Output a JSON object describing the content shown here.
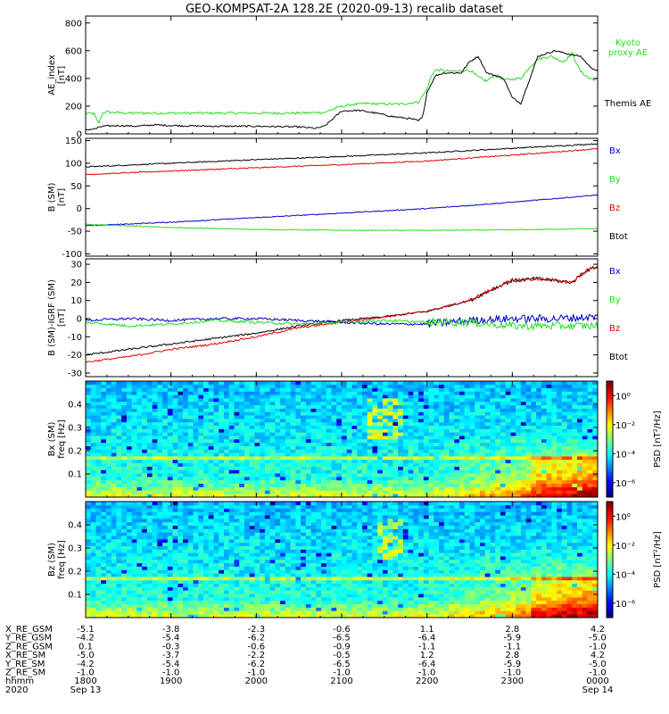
{
  "title": "GEO-KOMPSAT-2A 128.2E (2020-09-13) recalib dataset",
  "colors": {
    "black": "#000000",
    "red": "#e00000",
    "green": "#22dd22",
    "blue": "#0000cc"
  },
  "chart_data": [
    {
      "type": "line",
      "ylabel": [
        "AE_index",
        "[nT]"
      ],
      "xlim": [
        18.0,
        24.0
      ],
      "ylim": [
        0,
        850
      ],
      "yticks": [
        0,
        200,
        400,
        600,
        800
      ],
      "legend": [
        {
          "name": "Kyoto",
          "color": "#22dd22"
        },
        {
          "name": "proxy AE",
          "color": "#22dd22"
        },
        {
          "name": "Themis AE",
          "color": "#000000"
        }
      ],
      "series": [
        {
          "name": "Kyoto proxy AE",
          "color": "#22dd22",
          "x": [
            18.0,
            18.1,
            18.15,
            18.2,
            18.25,
            18.3,
            18.5,
            19.0,
            19.5,
            20.0,
            20.5,
            20.8,
            20.95,
            21.1,
            21.3,
            21.5,
            21.7,
            21.9,
            22.0,
            22.05,
            22.1,
            22.15,
            22.3,
            22.5,
            22.6,
            22.7,
            22.8,
            22.9,
            23.1,
            23.2,
            23.3,
            23.45,
            23.6,
            23.7,
            23.8,
            23.9,
            24.0
          ],
          "y": [
            150,
            145,
            70,
            150,
            160,
            155,
            150,
            150,
            150,
            150,
            150,
            155,
            190,
            210,
            220,
            215,
            215,
            230,
            320,
            420,
            460,
            460,
            450,
            460,
            410,
            380,
            430,
            390,
            400,
            480,
            540,
            560,
            520,
            580,
            450,
            400,
            390
          ]
        },
        {
          "name": "Themis AE",
          "color": "#000000",
          "x": [
            18.0,
            18.1,
            18.2,
            18.4,
            18.6,
            18.8,
            19.0,
            19.5,
            20.0,
            20.5,
            20.7,
            20.8,
            20.9,
            21.0,
            21.2,
            21.4,
            21.6,
            21.8,
            21.9,
            21.95,
            22.0,
            22.1,
            22.2,
            22.4,
            22.5,
            22.6,
            22.7,
            22.9,
            23.0,
            23.1,
            23.3,
            23.5,
            23.7,
            23.8,
            23.9,
            24.0
          ],
          "y": [
            30,
            35,
            55,
            60,
            55,
            65,
            60,
            55,
            55,
            50,
            40,
            55,
            110,
            165,
            170,
            150,
            125,
            110,
            95,
            120,
            300,
            420,
            440,
            440,
            520,
            560,
            440,
            400,
            260,
            220,
            560,
            600,
            570,
            560,
            490,
            450
          ]
        }
      ]
    },
    {
      "type": "line",
      "ylabel": [
        "B (SM)",
        "[nT]"
      ],
      "xlim": [
        18.0,
        24.0
      ],
      "ylim": [
        -105,
        155
      ],
      "yticks": [
        -100,
        -50,
        0,
        50,
        100,
        150
      ],
      "legend": [
        {
          "name": "Bx",
          "color": "#0000cc"
        },
        {
          "name": "By",
          "color": "#22dd22"
        },
        {
          "name": "Bz",
          "color": "#e00000"
        },
        {
          "name": "Btot",
          "color": "#000000"
        }
      ],
      "series": [
        {
          "name": "Btot",
          "color": "#000000",
          "x": [
            18.0,
            19.0,
            20.0,
            21.0,
            22.0,
            23.0,
            24.0
          ],
          "y": [
            92,
            100,
            108,
            115,
            123,
            133,
            143
          ]
        },
        {
          "name": "Bz",
          "color": "#e00000",
          "x": [
            18.0,
            19.0,
            20.0,
            21.0,
            22.0,
            23.0,
            24.0
          ],
          "y": [
            75,
            83,
            90,
            97,
            105,
            118,
            132
          ]
        },
        {
          "name": "Bx",
          "color": "#0000cc",
          "x": [
            18.0,
            19.0,
            20.0,
            21.0,
            22.0,
            23.0,
            24.0
          ],
          "y": [
            -38,
            -30,
            -20,
            -10,
            0,
            14,
            30
          ]
        },
        {
          "name": "By",
          "color": "#22dd22",
          "x": [
            18.0,
            18.5,
            19.0,
            19.5,
            20.0,
            21.0,
            22.0,
            23.0,
            24.0
          ],
          "y": [
            -35,
            -38,
            -42,
            -44,
            -46,
            -48,
            -48,
            -47,
            -44
          ]
        }
      ]
    },
    {
      "type": "line",
      "ylabel": [
        "B (SM)-IGRF (SM)",
        "[nT]"
      ],
      "xlim": [
        18.0,
        24.0
      ],
      "ylim": [
        -32,
        33
      ],
      "yticks": [
        -30,
        -20,
        -10,
        0,
        10,
        20,
        30
      ],
      "legend": [
        {
          "name": "Bx",
          "color": "#0000cc"
        },
        {
          "name": "By",
          "color": "#22dd22"
        },
        {
          "name": "Bz",
          "color": "#e00000"
        },
        {
          "name": "Btot",
          "color": "#000000"
        }
      ],
      "series": [
        {
          "name": "Btot",
          "color": "#000000",
          "x": [
            18.0,
            18.5,
            19.0,
            19.5,
            20.0,
            20.5,
            21.0,
            21.5,
            22.0,
            22.5,
            22.8,
            23.0,
            23.3,
            23.5,
            23.7,
            23.85,
            24.0
          ],
          "y": [
            -20,
            -17,
            -14,
            -11,
            -8,
            -4,
            -1,
            1,
            4,
            10,
            17,
            21,
            22,
            21,
            20,
            26,
            29
          ]
        },
        {
          "name": "Bz",
          "color": "#e00000",
          "x": [
            18.0,
            18.5,
            19.0,
            19.5,
            20.0,
            20.5,
            21.0,
            21.5,
            22.0,
            22.5,
            22.8,
            23.0,
            23.3,
            23.5,
            23.7,
            23.85,
            24.0
          ],
          "y": [
            -24,
            -21,
            -17,
            -14,
            -10,
            -5,
            -2,
            1,
            4,
            10,
            17,
            21,
            22,
            21,
            20,
            26,
            29
          ]
        },
        {
          "name": "Bx",
          "color": "#0000cc",
          "x": [
            18.0,
            18.5,
            19.0,
            19.5,
            20.0,
            20.5,
            21.0,
            21.5,
            22.0,
            22.5,
            23.0,
            23.5,
            24.0
          ],
          "y": [
            -1,
            0,
            -1,
            0,
            0,
            -1,
            -2,
            -3,
            -3,
            -1,
            0,
            0,
            1
          ]
        },
        {
          "name": "By",
          "color": "#22dd22",
          "x": [
            18.0,
            18.5,
            19.0,
            19.5,
            20.0,
            20.5,
            21.0,
            21.5,
            22.0,
            22.5,
            23.0,
            23.5,
            24.0
          ],
          "y": [
            -2,
            -4,
            -3,
            -1,
            -2,
            -3,
            -2,
            -1,
            -2,
            -2,
            -4,
            -4,
            -4
          ]
        }
      ]
    },
    {
      "type": "heatmap",
      "ylabel": [
        "Bx (SM)",
        "freq [Hz]"
      ],
      "xlim": [
        18.0,
        24.0
      ],
      "ylim": [
        0.0,
        0.5
      ],
      "yticks": [
        0.1,
        0.2,
        0.3,
        0.4
      ],
      "colorbar": {
        "label": "PSD [nT²/Hz]",
        "ticks": [
          "10⁰",
          "10⁻²",
          "10⁻⁴",
          "10⁻⁶"
        ],
        "log10_range": [
          -7,
          1
        ]
      },
      "features": {
        "line_freq_hz": 0.165,
        "burst_hours": [
          21.3,
          21.7
        ],
        "enhance_start_hour": 22.0
      }
    },
    {
      "type": "heatmap",
      "ylabel": [
        "Bz (SM)",
        "freq [Hz]"
      ],
      "xlim": [
        18.0,
        24.0
      ],
      "ylim": [
        0.0,
        0.5
      ],
      "yticks": [
        0.1,
        0.2,
        0.3,
        0.4
      ],
      "colorbar": {
        "label": "PSD [nT²/Hz]",
        "ticks": [
          "10⁰",
          "10⁻²",
          "10⁻⁴",
          "10⁻⁶"
        ],
        "log10_range": [
          -7,
          1
        ]
      },
      "features": {
        "line_freq_hz": 0.165,
        "burst_hours": [
          21.4,
          21.7
        ],
        "enhance_start_hour": 22.0
      }
    }
  ],
  "ephemeris": {
    "rows": [
      {
        "label": "X_RE_GSM",
        "values": [
          "-5.1",
          "-3.8",
          "-2.3",
          "-0.6",
          "1.1",
          "2.8",
          "4.2"
        ]
      },
      {
        "label": "Y_RE_GSM",
        "values": [
          "-4.2",
          "-5.4",
          "-6.2",
          "-6.5",
          "-6.4",
          "-5.9",
          "-5.0"
        ]
      },
      {
        "label": "Z_RE_GSM",
        "values": [
          "0.1",
          "-0.3",
          "-0.6",
          "-0.9",
          "-1.1",
          "-1.1",
          "-1.0"
        ]
      },
      {
        "label": "X_RE_SM",
        "values": [
          "-5.0",
          "-3.7",
          "-2.2",
          "-0.5",
          "1.2",
          "2.8",
          "4.2"
        ]
      },
      {
        "label": "Y_RE_SM",
        "values": [
          "-4.2",
          "-5.4",
          "-6.2",
          "-6.5",
          "-6.4",
          "-5.9",
          "-5.0"
        ]
      },
      {
        "label": "Z_RE_SM",
        "values": [
          "-1.0",
          "-1.0",
          "-1.0",
          "-1.0",
          "-1.0",
          "-1.0",
          "-1.0"
        ]
      },
      {
        "label": "hhmm",
        "values": [
          "1800",
          "1900",
          "2000",
          "2100",
          "2200",
          "2300",
          "0000"
        ]
      },
      {
        "label": "2020",
        "values": [
          "Sep 13",
          "",
          "",
          "",
          "",
          "",
          "Sep 14"
        ]
      }
    ]
  }
}
